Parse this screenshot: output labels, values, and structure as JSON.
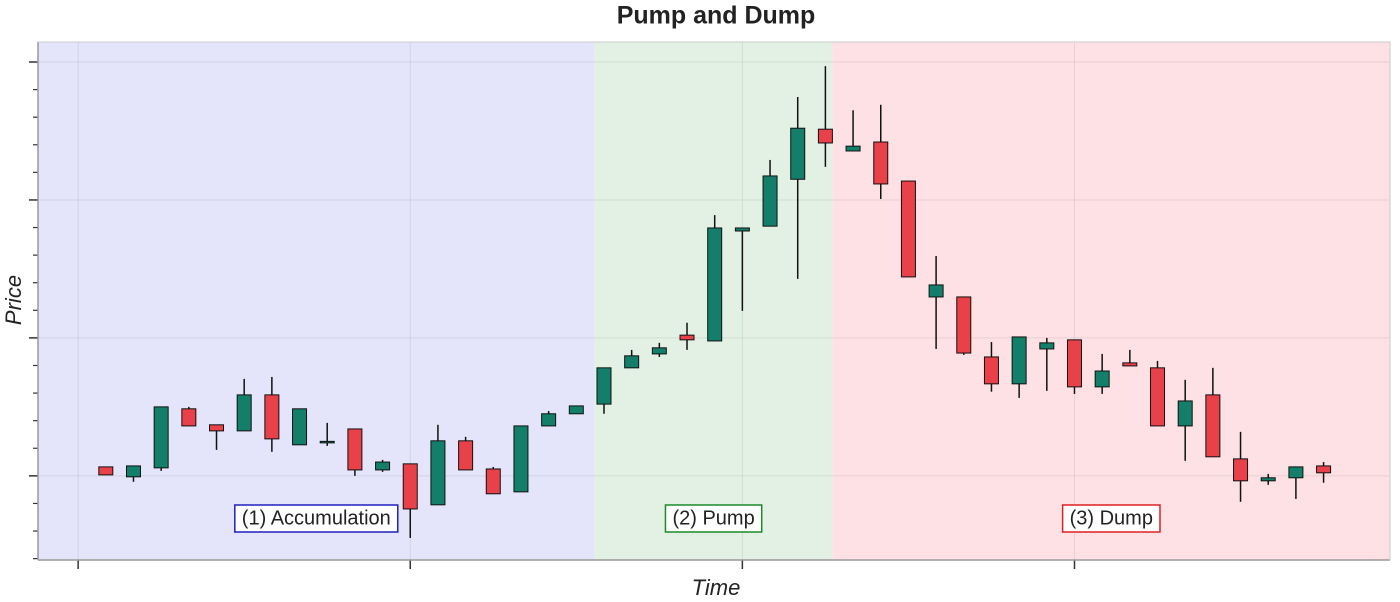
{
  "chart_data": {
    "type": "candlestick",
    "title": "Pump and Dump",
    "xlabel": "Time",
    "ylabel": "Price",
    "x": [
      1,
      2,
      3,
      4,
      5,
      6,
      7,
      8,
      9,
      10,
      11,
      12,
      13,
      14,
      15,
      16,
      17,
      18,
      19,
      20,
      21,
      22,
      23,
      24,
      25,
      26,
      27,
      28,
      29,
      30,
      31,
      32,
      33,
      34,
      35,
      36,
      37,
      38,
      39,
      40,
      41,
      42,
      43,
      44,
      45
    ],
    "open": [
      10.65,
      9.93,
      10.58,
      14.86,
      13.7,
      13.26,
      15.87,
      12.25,
      12.5,
      13.4,
      10.43,
      10.87,
      7.9,
      12.54,
      10.5,
      8.84,
      13.62,
      14.5,
      15.2,
      17.83,
      18.84,
      20.2,
      19.78,
      27.75,
      28.1,
      31.5,
      35.13,
      33.55,
      34.2,
      31.37,
      22.97,
      22.97,
      18.62,
      16.67,
      19.2,
      19.86,
      16.45,
      18.19,
      17.83,
      13.62,
      15.87,
      11.23,
      9.64,
      9.86,
      10.72
    ],
    "high": [
      10.65,
      10.72,
      15.0,
      15.0,
      13.7,
      17.03,
      17.17,
      14.86,
      13.84,
      13.4,
      11.16,
      10.87,
      13.7,
      12.83,
      10.65,
      13.62,
      14.7,
      15.07,
      17.83,
      19.13,
      19.64,
      21.1,
      28.9,
      27.97,
      32.9,
      37.46,
      39.7,
      36.5,
      36.9,
      31.37,
      25.94,
      22.97,
      19.7,
      20.07,
      20.0,
      19.86,
      18.84,
      19.13,
      18.33,
      16.96,
      17.83,
      13.19,
      10.14,
      10.65,
      11.0
    ],
    "low": [
      10.07,
      9.57,
      10.36,
      13.62,
      11.88,
      13.26,
      11.74,
      12.25,
      12.17,
      10.0,
      10.29,
      5.5,
      7.9,
      10.43,
      8.7,
      8.84,
      13.62,
      14.5,
      14.5,
      17.83,
      18.62,
      19.13,
      19.78,
      21.96,
      28.1,
      24.28,
      32.4,
      33.55,
      30.07,
      24.42,
      19.2,
      18.77,
      16.1,
      15.65,
      16.16,
      15.94,
      15.94,
      17.97,
      13.62,
      11.09,
      11.38,
      8.12,
      9.35,
      8.33,
      9.5
    ],
    "close": [
      10.07,
      10.72,
      15.0,
      13.62,
      13.26,
      15.87,
      12.68,
      14.86,
      12.5,
      10.43,
      11.0,
      7.6,
      12.54,
      10.43,
      8.7,
      13.62,
      14.5,
      15.07,
      17.83,
      18.7,
      19.28,
      19.86,
      27.97,
      27.97,
      31.74,
      35.2,
      34.13,
      33.9,
      31.16,
      24.42,
      23.84,
      18.9,
      16.67,
      20.07,
      19.64,
      16.45,
      17.6,
      17.97,
      13.62,
      15.43,
      11.38,
      9.64,
      9.86,
      10.65,
      10.22
    ],
    "up_color": "#137f6b",
    "down_color": "#e8414a",
    "xlim": [
      -1.45,
      47.4
    ],
    "ylim": [
      3.9,
      41.45
    ],
    "xticks": [
      0,
      12,
      24,
      36
    ],
    "yticks": [
      10,
      20,
      30,
      40
    ],
    "yminorticks": [
      4,
      6,
      8,
      12,
      14,
      16,
      18,
      22,
      24,
      26,
      28,
      32,
      34,
      36,
      38
    ],
    "grid": true,
    "regions": [
      {
        "label": "(1) Accumulation",
        "start": -1.45,
        "end": 18.66,
        "color": "#e4e4fb",
        "border": "#2020c0"
      },
      {
        "label": "(2) Pump",
        "start": 18.66,
        "end": 27.26,
        "color": "#e2f1e4",
        "border": "#1a8a2a"
      },
      {
        "label": "(3) Dump",
        "start": 27.26,
        "end": 47.4,
        "color": "#fde1e4",
        "border": "#e02020"
      }
    ]
  }
}
